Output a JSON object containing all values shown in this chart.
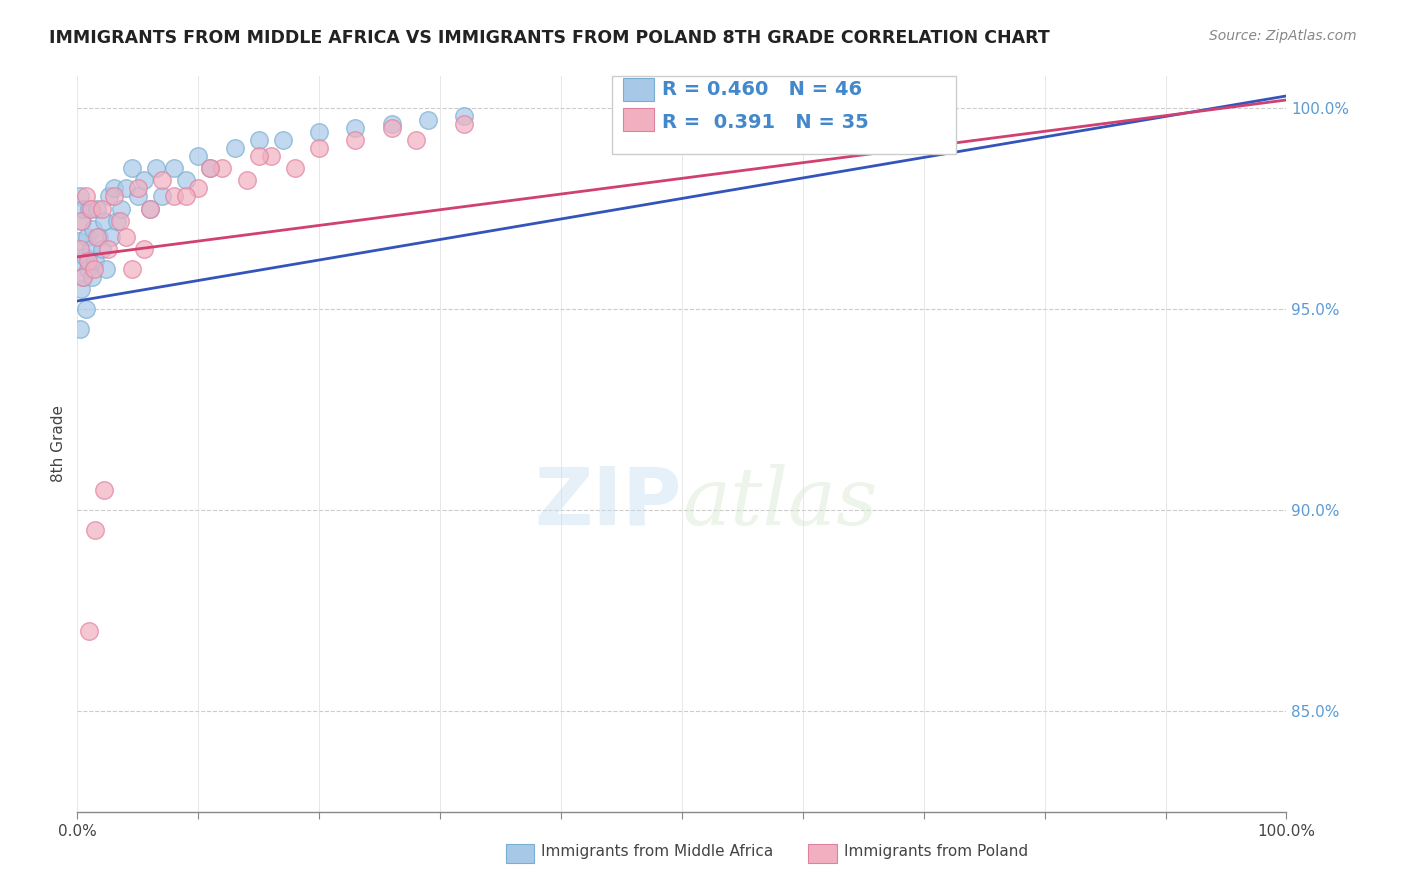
{
  "title": "IMMIGRANTS FROM MIDDLE AFRICA VS IMMIGRANTS FROM POLAND 8TH GRADE CORRELATION CHART",
  "source": "Source: ZipAtlas.com",
  "ylabel": "8th Grade",
  "legend1_label": "Immigrants from Middle Africa",
  "legend2_label": "Immigrants from Poland",
  "R1": 0.46,
  "N1": 46,
  "R2": 0.391,
  "N2": 35,
  "blue_color": "#a8c8e8",
  "blue_edge_color": "#7aaed0",
  "pink_color": "#f0b0c0",
  "pink_edge_color": "#e080a0",
  "blue_line_color": "#3355bb",
  "pink_line_color": "#d04070",
  "xlim": [
    0.0,
    1.0
  ],
  "ylim": [
    0.825,
    1.008
  ],
  "y_ticks": [
    0.85,
    0.9,
    0.95,
    1.0
  ],
  "y_tick_labels": [
    "85.0%",
    "90.0%",
    "95.0%",
    "100.0%"
  ],
  "x_ticks": [
    0.0,
    0.1,
    0.2,
    0.3,
    0.4,
    0.5,
    0.6,
    0.7,
    0.8,
    0.9,
    1.0
  ],
  "x_tick_labels": [
    "0.0%",
    "",
    "",
    "",
    "",
    "",
    "",
    "",
    "",
    "",
    "100.0%"
  ],
  "blue_x": [
    0.001,
    0.002,
    0.002,
    0.003,
    0.003,
    0.004,
    0.005,
    0.005,
    0.006,
    0.007,
    0.008,
    0.009,
    0.01,
    0.011,
    0.012,
    0.013,
    0.015,
    0.016,
    0.018,
    0.02,
    0.022,
    0.024,
    0.026,
    0.028,
    0.03,
    0.033,
    0.036,
    0.04,
    0.045,
    0.05,
    0.055,
    0.06,
    0.065,
    0.07,
    0.08,
    0.09,
    0.1,
    0.11,
    0.13,
    0.15,
    0.17,
    0.2,
    0.23,
    0.26,
    0.29,
    0.32
  ],
  "blue_y": [
    0.967,
    0.945,
    0.978,
    0.962,
    0.955,
    0.972,
    0.958,
    0.975,
    0.963,
    0.95,
    0.968,
    0.96,
    0.975,
    0.965,
    0.958,
    0.97,
    0.962,
    0.975,
    0.968,
    0.965,
    0.972,
    0.96,
    0.978,
    0.968,
    0.98,
    0.972,
    0.975,
    0.98,
    0.985,
    0.978,
    0.982,
    0.975,
    0.985,
    0.978,
    0.985,
    0.982,
    0.988,
    0.985,
    0.99,
    0.992,
    0.992,
    0.994,
    0.995,
    0.996,
    0.997,
    0.998
  ],
  "pink_x": [
    0.002,
    0.003,
    0.005,
    0.007,
    0.009,
    0.011,
    0.014,
    0.016,
    0.02,
    0.025,
    0.03,
    0.035,
    0.04,
    0.05,
    0.06,
    0.07,
    0.08,
    0.1,
    0.12,
    0.14,
    0.16,
    0.18,
    0.2,
    0.23,
    0.26,
    0.01,
    0.015,
    0.022,
    0.045,
    0.055,
    0.09,
    0.11,
    0.15,
    0.28,
    0.32
  ],
  "pink_y": [
    0.965,
    0.972,
    0.958,
    0.978,
    0.962,
    0.975,
    0.96,
    0.968,
    0.975,
    0.965,
    0.978,
    0.972,
    0.968,
    0.98,
    0.975,
    0.982,
    0.978,
    0.98,
    0.985,
    0.982,
    0.988,
    0.985,
    0.99,
    0.992,
    0.995,
    0.87,
    0.895,
    0.905,
    0.96,
    0.965,
    0.978,
    0.985,
    0.988,
    0.992,
    0.996
  ],
  "blue_line_x0": 0.0,
  "blue_line_y0": 0.952,
  "blue_line_x1": 1.0,
  "blue_line_y1": 1.003,
  "pink_line_x0": 0.0,
  "pink_line_y0": 0.963,
  "pink_line_x1": 1.0,
  "pink_line_y1": 1.002
}
